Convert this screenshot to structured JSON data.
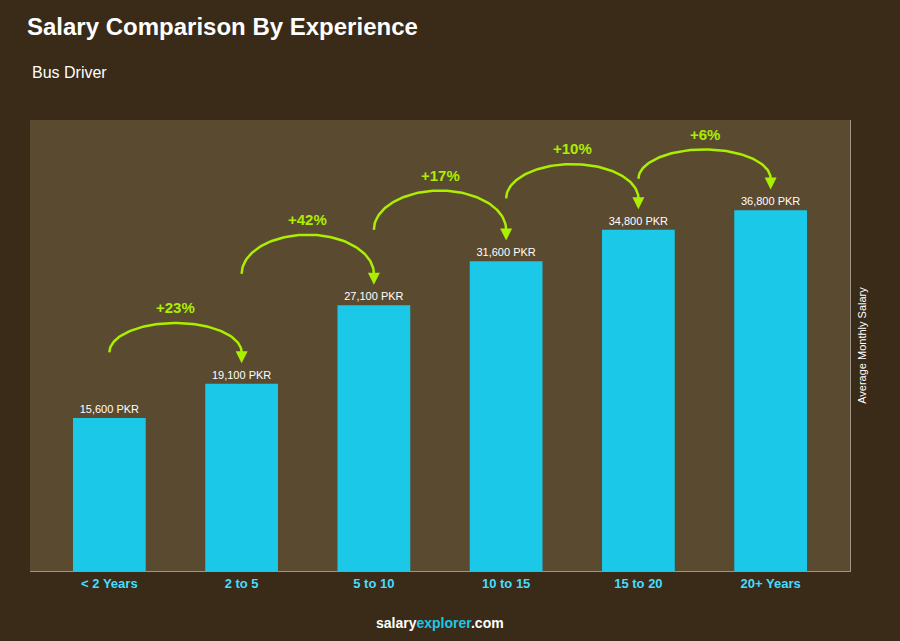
{
  "chart_data": {
    "type": "bar",
    "title": "Salary Comparison By Experience",
    "subtitle": "Bus Driver",
    "ylabel": "Average Monthly Salary",
    "categories": [
      "< 2 Years",
      "2 to 5",
      "5 to 10",
      "10 to 15",
      "15 to 20",
      "20+ Years"
    ],
    "values": [
      15600,
      19100,
      27100,
      31600,
      34800,
      36800
    ],
    "value_labels": [
      "15,600 PKR",
      "19,100 PKR",
      "27,100 PKR",
      "31,600 PKR",
      "34,800 PKR",
      "36,800 PKR"
    ],
    "data_labels": true,
    "color": "#1BC8E8",
    "ylim": [
      0,
      46000
    ],
    "tick_labels": "x",
    "grid": false,
    "annotations": [
      "+23%",
      "+42%",
      "+17%",
      "+10%",
      "+6%"
    ],
    "source": [
      "salary",
      "explorer",
      ".com"
    ]
  }
}
